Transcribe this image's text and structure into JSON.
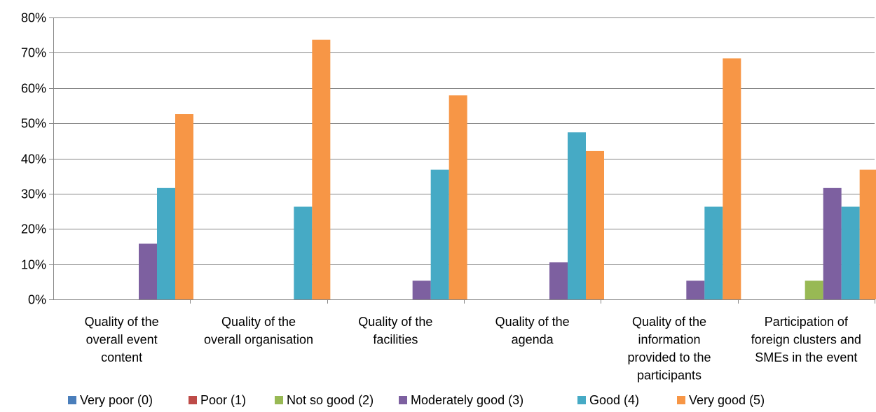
{
  "chart_data": {
    "type": "bar",
    "title": "",
    "xlabel": "",
    "ylabel": "",
    "ylim": [
      0,
      0.8
    ],
    "yticks": [
      "0%",
      "10%",
      "20%",
      "30%",
      "40%",
      "50%",
      "60%",
      "70%",
      "80%"
    ],
    "grid": true,
    "legend_position": "bottom",
    "categories": [
      [
        "Quality of the",
        "overall event",
        "content"
      ],
      [
        "Quality of the",
        "overall organisation"
      ],
      [
        "Quality of the",
        "facilities"
      ],
      [
        "Quality of the",
        "agenda"
      ],
      [
        "Quality of the",
        "information",
        "provided to the",
        "participants"
      ],
      [
        "Participation of",
        "foreign clusters and",
        "SMEs in the event"
      ]
    ],
    "series": [
      {
        "name": "Very poor (0)",
        "color": "#4a7ebb",
        "values": [
          0,
          0,
          0,
          0,
          0,
          0
        ]
      },
      {
        "name": "Poor (1)",
        "color": "#be4b48",
        "values": [
          0,
          0,
          0,
          0,
          0,
          0
        ]
      },
      {
        "name": "Not so good (2)",
        "color": "#98b954",
        "values": [
          0,
          0,
          0,
          0,
          0,
          0.053
        ]
      },
      {
        "name": "Moderately good (3)",
        "color": "#7d60a0",
        "values": [
          0.158,
          0,
          0.053,
          0.105,
          0.053,
          0.316
        ]
      },
      {
        "name": "Good (4)",
        "color": "#46aac5",
        "values": [
          0.316,
          0.263,
          0.368,
          0.474,
          0.263,
          0.263
        ]
      },
      {
        "name": "Very good  (5)",
        "color": "#f79646",
        "values": [
          0.526,
          0.737,
          0.579,
          0.421,
          0.684,
          0.368
        ]
      }
    ]
  }
}
